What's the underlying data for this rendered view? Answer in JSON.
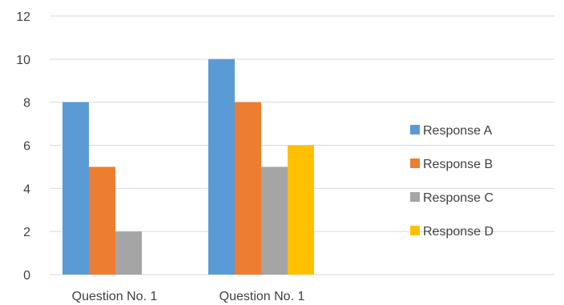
{
  "chart_data": {
    "type": "bar",
    "categories": [
      "Question No. 1",
      "Question No. 1"
    ],
    "series": [
      {
        "name": "Response A",
        "color": "#5b9bd5",
        "values": [
          8,
          10
        ]
      },
      {
        "name": "Response B",
        "color": "#ed7d31",
        "values": [
          5,
          8
        ]
      },
      {
        "name": "Response C",
        "color": "#a5a5a5",
        "values": [
          2,
          5
        ]
      },
      {
        "name": "Response D",
        "color": "#ffc000",
        "values": [
          0,
          6
        ]
      }
    ],
    "ylim": [
      0,
      12
    ],
    "yticks": [
      0,
      2,
      4,
      6,
      8,
      10,
      12
    ],
    "grid": true,
    "legend_position": "right",
    "title": "",
    "xlabel": "",
    "ylabel": ""
  }
}
